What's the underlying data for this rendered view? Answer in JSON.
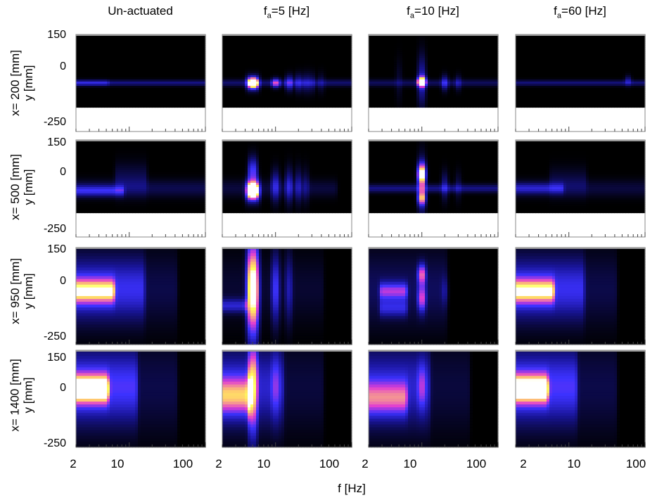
{
  "columns": [
    {
      "title_main": "Un-actuated",
      "title_sub": "",
      "title_rest": ""
    },
    {
      "title_main": "f",
      "title_sub": "a",
      "title_rest": "=5 [Hz]"
    },
    {
      "title_main": "f",
      "title_sub": "a",
      "title_rest": "=10 [Hz]"
    },
    {
      "title_main": "f",
      "title_sub": "a",
      "title_rest": "=60 [Hz]"
    }
  ],
  "rows": [
    {
      "label": "x= 200 [mm]",
      "ylabel": "y [mm]"
    },
    {
      "label": "x= 500 [mm]",
      "ylabel": "y [mm]"
    },
    {
      "label": "x= 950 [mm]",
      "ylabel": "y [mm]"
    },
    {
      "label": "x= 1400 [mm]",
      "ylabel": "y [mm]"
    }
  ],
  "y_ticks": [
    "150",
    "0",
    "-250"
  ],
  "x_ticks": [
    "2",
    "10",
    "100"
  ],
  "xlabel": "f [Hz]",
  "colors": {
    "background": "#000000",
    "low": "#1a1aff",
    "mid": "#ff33cc",
    "high": "#ffff66"
  },
  "chart_data": {
    "type": "heatmap",
    "x_scale": "log",
    "xlim": [
      2,
      100
    ],
    "ylim": [
      -250,
      150
    ],
    "xlabel": "f [Hz]",
    "colormap": "black-blue-magenta-yellow-white",
    "grid": false,
    "panels": [
      {
        "row": 0,
        "col": 0,
        "y_data_min": -150,
        "blobs": [
          {
            "f1": 2,
            "f2": 100,
            "y": -50,
            "sy": 8,
            "v": 0.22
          },
          {
            "f1": 2,
            "f2": 5,
            "y": -50,
            "sy": 8,
            "v": 0.18
          }
        ]
      },
      {
        "row": 0,
        "col": 1,
        "y_data_min": -150,
        "blobs": [
          {
            "f1": 2,
            "f2": 100,
            "y": -50,
            "sy": 10,
            "v": 0.18
          },
          {
            "f1": 4.8,
            "f2": 5.3,
            "y": -50,
            "sy": 14,
            "v": 1.0
          },
          {
            "f1": 4.4,
            "f2": 5.8,
            "y": -50,
            "sy": 20,
            "v": 0.5
          },
          {
            "f1": 9.6,
            "f2": 10.6,
            "y": -50,
            "sy": 13,
            "v": 0.5
          },
          {
            "f1": 14.5,
            "f2": 15.8,
            "y": -50,
            "sy": 22,
            "v": 0.35
          },
          {
            "f1": 19.5,
            "f2": 21,
            "y": -50,
            "sy": 26,
            "v": 0.25
          },
          {
            "f1": 24.5,
            "f2": 26,
            "y": -50,
            "sy": 28,
            "v": 0.2
          },
          {
            "f1": 29.5,
            "f2": 31,
            "y": -50,
            "sy": 28,
            "v": 0.16
          },
          {
            "f1": 39,
            "f2": 41,
            "y": -50,
            "sy": 28,
            "v": 0.12
          }
        ]
      },
      {
        "row": 0,
        "col": 2,
        "y_data_min": -150,
        "blobs": [
          {
            "f1": 2,
            "f2": 100,
            "y": -50,
            "sy": 10,
            "v": 0.15
          },
          {
            "f1": 9.5,
            "f2": 10.5,
            "y": -45,
            "sy": 14,
            "v": 1.0
          },
          {
            "f1": 9.5,
            "f2": 10.5,
            "y": -40,
            "sy": 70,
            "v": 0.3
          },
          {
            "f1": 19.5,
            "f2": 20.5,
            "y": -50,
            "sy": 22,
            "v": 0.3
          },
          {
            "f1": 29.5,
            "f2": 30.5,
            "y": -50,
            "sy": 22,
            "v": 0.18
          },
          {
            "f1": 4.9,
            "f2": 5.1,
            "y": -40,
            "sy": 60,
            "v": 0.08
          }
        ]
      },
      {
        "row": 0,
        "col": 3,
        "y_data_min": -150,
        "blobs": [
          {
            "f1": 2,
            "f2": 100,
            "y": -50,
            "sy": 8,
            "v": 0.2
          },
          {
            "f1": 59,
            "f2": 61,
            "y": -40,
            "sy": 14,
            "v": 0.22
          }
        ]
      },
      {
        "row": 1,
        "col": 0,
        "y_data_min": -150,
        "blobs": [
          {
            "f1": 2,
            "f2": 8,
            "y": -60,
            "sy": 15,
            "v": 0.32
          },
          {
            "f1": 2,
            "f2": 100,
            "y": -50,
            "sy": 25,
            "v": 0.13
          },
          {
            "f1": 7,
            "f2": 16,
            "y": -10,
            "sy": 45,
            "v": 0.13
          }
        ]
      },
      {
        "row": 1,
        "col": 1,
        "y_data_min": -150,
        "blobs": [
          {
            "f1": 4.7,
            "f2": 5.4,
            "y": -60,
            "sy": 22,
            "v": 1.0
          },
          {
            "f1": 4.7,
            "f2": 5.4,
            "y": 20,
            "sy": 40,
            "v": 0.45
          },
          {
            "f1": 4.3,
            "f2": 5.9,
            "y": -60,
            "sy": 30,
            "v": 0.55
          },
          {
            "f1": 9.5,
            "f2": 10.5,
            "y": -40,
            "sy": 45,
            "v": 0.3
          },
          {
            "f1": 14.5,
            "f2": 15.5,
            "y": -40,
            "sy": 50,
            "v": 0.3
          },
          {
            "f1": 19.5,
            "f2": 20.5,
            "y": -40,
            "sy": 50,
            "v": 0.22
          },
          {
            "f1": 24.5,
            "f2": 25.5,
            "y": -40,
            "sy": 50,
            "v": 0.15
          },
          {
            "f1": 2,
            "f2": 60,
            "y": -50,
            "sy": 25,
            "v": 0.1
          }
        ]
      },
      {
        "row": 1,
        "col": 2,
        "y_data_min": -150,
        "blobs": [
          {
            "f1": 9.5,
            "f2": 10.5,
            "y": 10,
            "sy": 30,
            "v": 0.85
          },
          {
            "f1": 9.5,
            "f2": 10.5,
            "y": -90,
            "sy": 20,
            "v": 0.6
          },
          {
            "f1": 9.5,
            "f2": 10.5,
            "y": -40,
            "sy": 80,
            "v": 0.3
          },
          {
            "f1": 2,
            "f2": 100,
            "y": -50,
            "sy": 12,
            "v": 0.22
          },
          {
            "f1": 19.5,
            "f2": 20.5,
            "y": -40,
            "sy": 40,
            "v": 0.22
          },
          {
            "f1": 29.5,
            "f2": 30.5,
            "y": -40,
            "sy": 40,
            "v": 0.12
          }
        ]
      },
      {
        "row": 1,
        "col": 3,
        "y_data_min": -150,
        "blobs": [
          {
            "f1": 2,
            "f2": 8,
            "y": -50,
            "sy": 15,
            "v": 0.26
          },
          {
            "f1": 2,
            "f2": 100,
            "y": -50,
            "sy": 25,
            "v": 0.1
          },
          {
            "f1": 6,
            "f2": 16,
            "y": -20,
            "sy": 40,
            "v": 0.1
          }
        ]
      },
      {
        "row": 2,
        "col": 0,
        "y_data_min": -250,
        "blobs": [
          {
            "f1": 2,
            "f2": 6,
            "y": -30,
            "sy": 35,
            "v": 0.65
          },
          {
            "f1": 2,
            "f2": 15,
            "y": -20,
            "sy": 85,
            "v": 0.3
          },
          {
            "f1": 2,
            "f2": 40,
            "y": -20,
            "sy": 110,
            "v": 0.12
          }
        ]
      },
      {
        "row": 2,
        "col": 1,
        "y_data_min": -250,
        "blobs": [
          {
            "f1": 4.7,
            "f2": 5.4,
            "y": -20,
            "sy": 140,
            "v": 0.7
          },
          {
            "f1": 4.3,
            "f2": 5.9,
            "y": -20,
            "sy": 140,
            "v": 0.35
          },
          {
            "f1": 2,
            "f2": 4,
            "y": -90,
            "sy": 20,
            "v": 0.3
          },
          {
            "f1": 9.5,
            "f2": 10.5,
            "y": -20,
            "sy": 100,
            "v": 0.35
          },
          {
            "f1": 14.5,
            "f2": 15.5,
            "y": -20,
            "sy": 100,
            "v": 0.22
          },
          {
            "f1": 2,
            "f2": 40,
            "y": -20,
            "sy": 100,
            "v": 0.08
          }
        ]
      },
      {
        "row": 2,
        "col": 2,
        "y_data_min": -250,
        "blobs": [
          {
            "f1": 3,
            "f2": 6,
            "y": -30,
            "sy": 25,
            "v": 0.45
          },
          {
            "f1": 3,
            "f2": 6,
            "y": -100,
            "sy": 25,
            "v": 0.28
          },
          {
            "f1": 9.5,
            "f2": 10.5,
            "y": 40,
            "sy": 30,
            "v": 0.55
          },
          {
            "f1": 9.5,
            "f2": 10.5,
            "y": -60,
            "sy": 40,
            "v": 0.5
          },
          {
            "f1": 2,
            "f2": 20,
            "y": -20,
            "sy": 110,
            "v": 0.15
          },
          {
            "f1": 19.5,
            "f2": 20.5,
            "y": -30,
            "sy": 40,
            "v": 0.12
          }
        ]
      },
      {
        "row": 2,
        "col": 3,
        "y_data_min": -250,
        "blobs": [
          {
            "f1": 2,
            "f2": 6,
            "y": -30,
            "sy": 35,
            "v": 0.65
          },
          {
            "f1": 2,
            "f2": 15,
            "y": -20,
            "sy": 85,
            "v": 0.3
          },
          {
            "f1": 2,
            "f2": 40,
            "y": -20,
            "sy": 110,
            "v": 0.12
          }
        ]
      },
      {
        "row": 3,
        "col": 0,
        "y_data_min": -250,
        "blobs": [
          {
            "f1": 2,
            "f2": 5,
            "y": -10,
            "sy": 40,
            "v": 0.85
          },
          {
            "f1": 2,
            "f2": 12,
            "y": 0,
            "sy": 100,
            "v": 0.35
          },
          {
            "f1": 2,
            "f2": 40,
            "y": 0,
            "sy": 140,
            "v": 0.12
          }
        ]
      },
      {
        "row": 3,
        "col": 1,
        "y_data_min": -250,
        "blobs": [
          {
            "f1": 4.7,
            "f2": 5.4,
            "y": 0,
            "sy": 150,
            "v": 0.6
          },
          {
            "f1": 2,
            "f2": 4.5,
            "y": -40,
            "sy": 55,
            "v": 0.55
          },
          {
            "f1": 2,
            "f2": 12,
            "y": 0,
            "sy": 110,
            "v": 0.25
          },
          {
            "f1": 9.5,
            "f2": 10.5,
            "y": 0,
            "sy": 100,
            "v": 0.2
          },
          {
            "f1": 2,
            "f2": 40,
            "y": 0,
            "sy": 140,
            "v": 0.1
          }
        ]
      },
      {
        "row": 3,
        "col": 2,
        "y_data_min": -250,
        "blobs": [
          {
            "f1": 2,
            "f2": 6,
            "y": -50,
            "sy": 50,
            "v": 0.45
          },
          {
            "f1": 2,
            "f2": 12,
            "y": 0,
            "sy": 110,
            "v": 0.25
          },
          {
            "f1": 9.5,
            "f2": 10.5,
            "y": 0,
            "sy": 70,
            "v": 0.25
          },
          {
            "f1": 2,
            "f2": 40,
            "y": 0,
            "sy": 140,
            "v": 0.1
          }
        ]
      },
      {
        "row": 3,
        "col": 3,
        "y_data_min": -250,
        "blobs": [
          {
            "f1": 2,
            "f2": 5,
            "y": -10,
            "sy": 40,
            "v": 0.82
          },
          {
            "f1": 2,
            "f2": 12,
            "y": 0,
            "sy": 100,
            "v": 0.35
          },
          {
            "f1": 2,
            "f2": 40,
            "y": 0,
            "sy": 140,
            "v": 0.12
          }
        ]
      }
    ]
  }
}
